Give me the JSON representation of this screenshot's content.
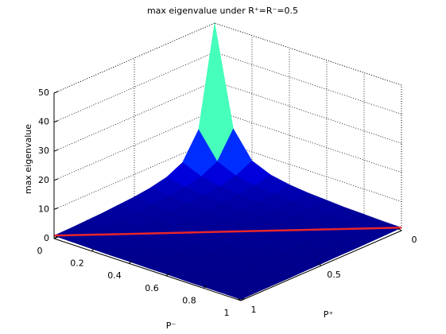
{
  "chart_data": {
    "type": "surface",
    "title": "max eigenvalue under R⁺=R⁻=0.5",
    "xlabel": "P⁺",
    "ylabel": "P⁻",
    "zlabel": "max eigenvalue",
    "x": [
      0,
      0.1,
      0.2,
      0.3,
      0.4,
      0.5,
      0.6,
      0.7,
      0.8,
      0.9,
      1
    ],
    "y": [
      0,
      0.1,
      0.2,
      0.3,
      0.4,
      0.5,
      0.6,
      0.7,
      0.8,
      0.9,
      1
    ],
    "z": [
      [
        50,
        15.8,
        6.9,
        4.2,
        3.0,
        2.3,
        1.9,
        1.5,
        1.3,
        1.1,
        1.0
      ],
      [
        15.8,
        6.9,
        4.2,
        3.0,
        2.3,
        1.9,
        1.5,
        1.3,
        1.1,
        1.0,
        0.9
      ],
      [
        6.9,
        4.2,
        3.0,
        2.3,
        1.9,
        1.5,
        1.3,
        1.1,
        1.0,
        0.9,
        0.8
      ],
      [
        4.2,
        3.0,
        2.3,
        1.9,
        1.5,
        1.3,
        1.1,
        1.0,
        0.9,
        0.8,
        0.7
      ],
      [
        3.0,
        2.3,
        1.9,
        1.5,
        1.3,
        1.1,
        1.0,
        0.9,
        0.8,
        0.7,
        0.7
      ],
      [
        2.3,
        1.9,
        1.5,
        1.3,
        1.1,
        1.0,
        0.9,
        0.8,
        0.7,
        0.7,
        0.6
      ],
      [
        1.9,
        1.5,
        1.3,
        1.1,
        1.0,
        0.9,
        0.8,
        0.7,
        0.7,
        0.6,
        0.6
      ],
      [
        1.5,
        1.3,
        1.1,
        1.0,
        0.9,
        0.8,
        0.7,
        0.7,
        0.6,
        0.6,
        0.5
      ],
      [
        1.3,
        1.1,
        1.0,
        0.9,
        0.8,
        0.7,
        0.7,
        0.6,
        0.6,
        0.5,
        0.5
      ],
      [
        1.1,
        1.0,
        0.9,
        0.8,
        0.7,
        0.7,
        0.6,
        0.6,
        0.5,
        0.5,
        0.5
      ],
      [
        1.0,
        0.9,
        0.8,
        0.7,
        0.7,
        0.6,
        0.6,
        0.5,
        0.5,
        0.5,
        0.4
      ]
    ],
    "colormap": "jet",
    "xlim": [
      0,
      1
    ],
    "ylim": [
      0,
      1
    ],
    "zlim": [
      0,
      50
    ],
    "xticks": [
      0,
      0.5,
      1
    ],
    "yticks": [
      0,
      0.2,
      0.4,
      0.6,
      0.8,
      1
    ],
    "zticks": [
      0,
      10,
      20,
      30,
      40,
      50
    ],
    "grid": true,
    "line": {
      "color": "#e8262a",
      "x": [
        1,
        0
      ],
      "y": [
        0,
        1
      ],
      "z": [
        1,
        1
      ]
    }
  }
}
